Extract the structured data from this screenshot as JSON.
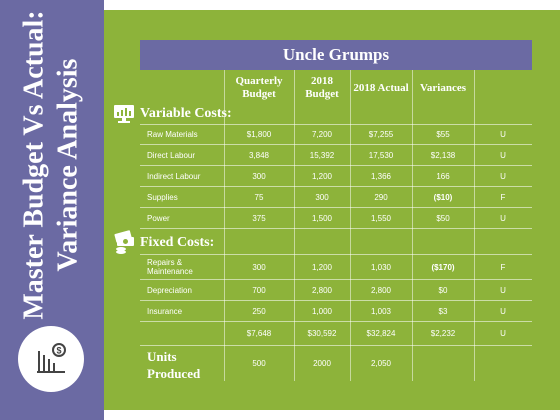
{
  "sidebar": {
    "title_line1": "Master Budget Vs Actual:",
    "title_line2": "Variance Analysis"
  },
  "table": {
    "title": "Uncle Grumps",
    "columns": {
      "quarterly": "Quarterly Budget",
      "budget": "2018 Budget",
      "actual": "2018 Actual",
      "variances": "Variances"
    },
    "variable_costs_heading": "Variable Costs:",
    "variable_rows": [
      {
        "label": "Raw Materials",
        "quarterly": "$1,800",
        "budget": "7,200",
        "actual": "$7,255",
        "variance": "$55",
        "flag": "U"
      },
      {
        "label": "Direct Labour",
        "quarterly": "3,848",
        "budget": "15,392",
        "actual": "17,530",
        "variance": "$2,138",
        "flag": "U"
      },
      {
        "label": "Indirect Labour",
        "quarterly": "300",
        "budget": "1,200",
        "actual": "1,366",
        "variance": "166",
        "flag": "U"
      },
      {
        "label": "Supplies",
        "quarterly": "75",
        "budget": "300",
        "actual": "290",
        "variance": "($10)",
        "flag": "F"
      },
      {
        "label": "Power",
        "quarterly": "375",
        "budget": "1,500",
        "actual": "1,550",
        "variance": "$50",
        "flag": "U"
      }
    ],
    "fixed_costs_heading": "Fixed Costs:",
    "fixed_rows": [
      {
        "label": "Repairs & Maintenance",
        "quarterly": "300",
        "budget": "1,200",
        "actual": "1,030",
        "variance": "($170)",
        "flag": "F"
      },
      {
        "label": "Depreciation",
        "quarterly": "700",
        "budget": "2,800",
        "actual": "2,800",
        "variance": "$0",
        "flag": "U"
      },
      {
        "label": "Insurance",
        "quarterly": "250",
        "budget": "1,000",
        "actual": "1,003",
        "variance": "$3",
        "flag": "U"
      }
    ],
    "totals": {
      "quarterly": "$7,648",
      "budget": "$30,592",
      "actual": "$32,824",
      "variance": "$2,232",
      "flag": "U"
    },
    "units": {
      "label": "Units Produced",
      "quarterly": "500",
      "budget": "2000",
      "actual": "2,050"
    }
  },
  "colors": {
    "sidebar": "#6b6aa3",
    "panel": "#8db33a",
    "text": "#ffffff"
  },
  "icons": {
    "sidebar": "chart-dollar-icon",
    "variable": "monitor-chart-icon",
    "fixed": "money-stack-icon"
  }
}
